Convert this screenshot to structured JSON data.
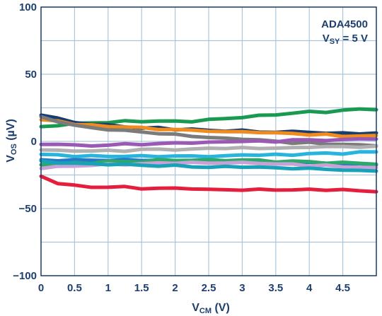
{
  "chart_data": {
    "type": "line",
    "xlabel": {
      "main": "V",
      "sub": "CM",
      "unit": " (V)"
    },
    "ylabel": {
      "main": "V",
      "sub": "OS",
      "unit": " (µV)"
    },
    "xlim": [
      0,
      5
    ],
    "ylim": [
      -100,
      100
    ],
    "x_ticks": [
      0,
      0.5,
      1,
      1.5,
      2,
      2.5,
      3,
      3.5,
      4,
      4.5
    ],
    "x_tick_labels": [
      "0",
      "0.5",
      "1",
      "1.5",
      "2",
      "2.5",
      "3",
      "3.5",
      "4",
      "4.5"
    ],
    "y_ticks": [
      100,
      50,
      0,
      -50,
      -100
    ],
    "y_tick_labels": [
      "100",
      "50",
      "0",
      "−50",
      "−100"
    ],
    "grid": true,
    "annotation": {
      "line1": "ADA4500",
      "line2_main": "V",
      "line2_sub": "SY",
      "line2_rest": " = 5 V"
    },
    "x": [
      0,
      0.25,
      0.5,
      0.75,
      1,
      1.25,
      1.5,
      1.75,
      2,
      2.25,
      2.5,
      2.75,
      3,
      3.25,
      3.5,
      3.75,
      4,
      4.25,
      4.5,
      4.75,
      5
    ],
    "series": [
      {
        "color": "#1a9a50",
        "values": [
          11,
          12,
          13,
          14,
          14,
          15,
          15,
          15,
          15,
          15,
          16,
          17,
          18,
          19,
          20,
          21,
          22,
          22,
          23,
          24,
          24
        ]
      },
      {
        "color": "#1b3d6e",
        "values": [
          20,
          17,
          14,
          13,
          12,
          11,
          10,
          10,
          9,
          9,
          8,
          8,
          8,
          7,
          7,
          7,
          7,
          6,
          6,
          6,
          6
        ]
      },
      {
        "color": "#f08c1e",
        "values": [
          16,
          15,
          13,
          12,
          11,
          11,
          10,
          9,
          9,
          8,
          8,
          7,
          7,
          7,
          6,
          6,
          5,
          5,
          4,
          4,
          4
        ]
      },
      {
        "color": "#7b7b7b",
        "values": [
          18,
          15,
          12,
          10,
          9,
          8,
          7,
          6,
          5,
          4,
          3,
          2,
          2,
          1,
          0,
          -1,
          -1,
          -2,
          -2,
          -3,
          -3
        ]
      },
      {
        "color": "#9b59b6",
        "values": [
          -2,
          -2,
          -3,
          -3,
          -3,
          -2,
          -2,
          -2,
          -1,
          -1,
          -1,
          0,
          0,
          0,
          0,
          1,
          1,
          1,
          1,
          2,
          2
        ]
      },
      {
        "color": "#b0b0b0",
        "values": [
          -6,
          -7,
          -7,
          -7,
          -7,
          -7,
          -6,
          -6,
          -6,
          -6,
          -5,
          -5,
          -5,
          -5,
          -5,
          -5,
          -4,
          -4,
          -4,
          -4,
          -4
        ]
      },
      {
        "color": "#29b4dd",
        "values": [
          -10,
          -10,
          -11,
          -11,
          -11,
          -11,
          -11,
          -11,
          -11,
          -11,
          -11,
          -11,
          -10,
          -10,
          -10,
          -10,
          -9,
          -9,
          -9,
          -8,
          -8
        ]
      },
      {
        "color": "#2678c7",
        "values": [
          -14,
          -14,
          -14,
          -14,
          -14,
          -14,
          -14,
          -14,
          -15,
          -15,
          -15,
          -15,
          -15,
          -15,
          -16,
          -16,
          -16,
          -16,
          -17,
          -17,
          -17
        ]
      },
      {
        "color": "#2ea86a",
        "values": [
          -17,
          -17,
          -16,
          -16,
          -15,
          -15,
          -15,
          -14,
          -14,
          -14,
          -14,
          -14,
          -14,
          -14,
          -15,
          -15,
          -15,
          -16,
          -16,
          -16,
          -17
        ]
      },
      {
        "color": "#c8a2d6",
        "values": [
          -20,
          -19,
          -18,
          -18,
          -17,
          -17,
          -17,
          -16,
          -16,
          -16,
          -16,
          -16,
          -16,
          -16,
          -17,
          -17,
          -18,
          -18,
          -19,
          -19,
          -20
        ]
      },
      {
        "color": "#17a2b8",
        "values": [
          -15,
          -16,
          -16,
          -17,
          -17,
          -17,
          -18,
          -18,
          -18,
          -19,
          -19,
          -19,
          -19,
          -19,
          -20,
          -20,
          -20,
          -21,
          -21,
          -22,
          -22
        ]
      },
      {
        "color": "#e41e3c",
        "values": [
          -26,
          -31,
          -33,
          -34,
          -34,
          -34,
          -35,
          -35,
          -35,
          -35,
          -36,
          -36,
          -36,
          -36,
          -36,
          -36,
          -36,
          -36,
          -36,
          -37,
          -37
        ]
      }
    ]
  }
}
